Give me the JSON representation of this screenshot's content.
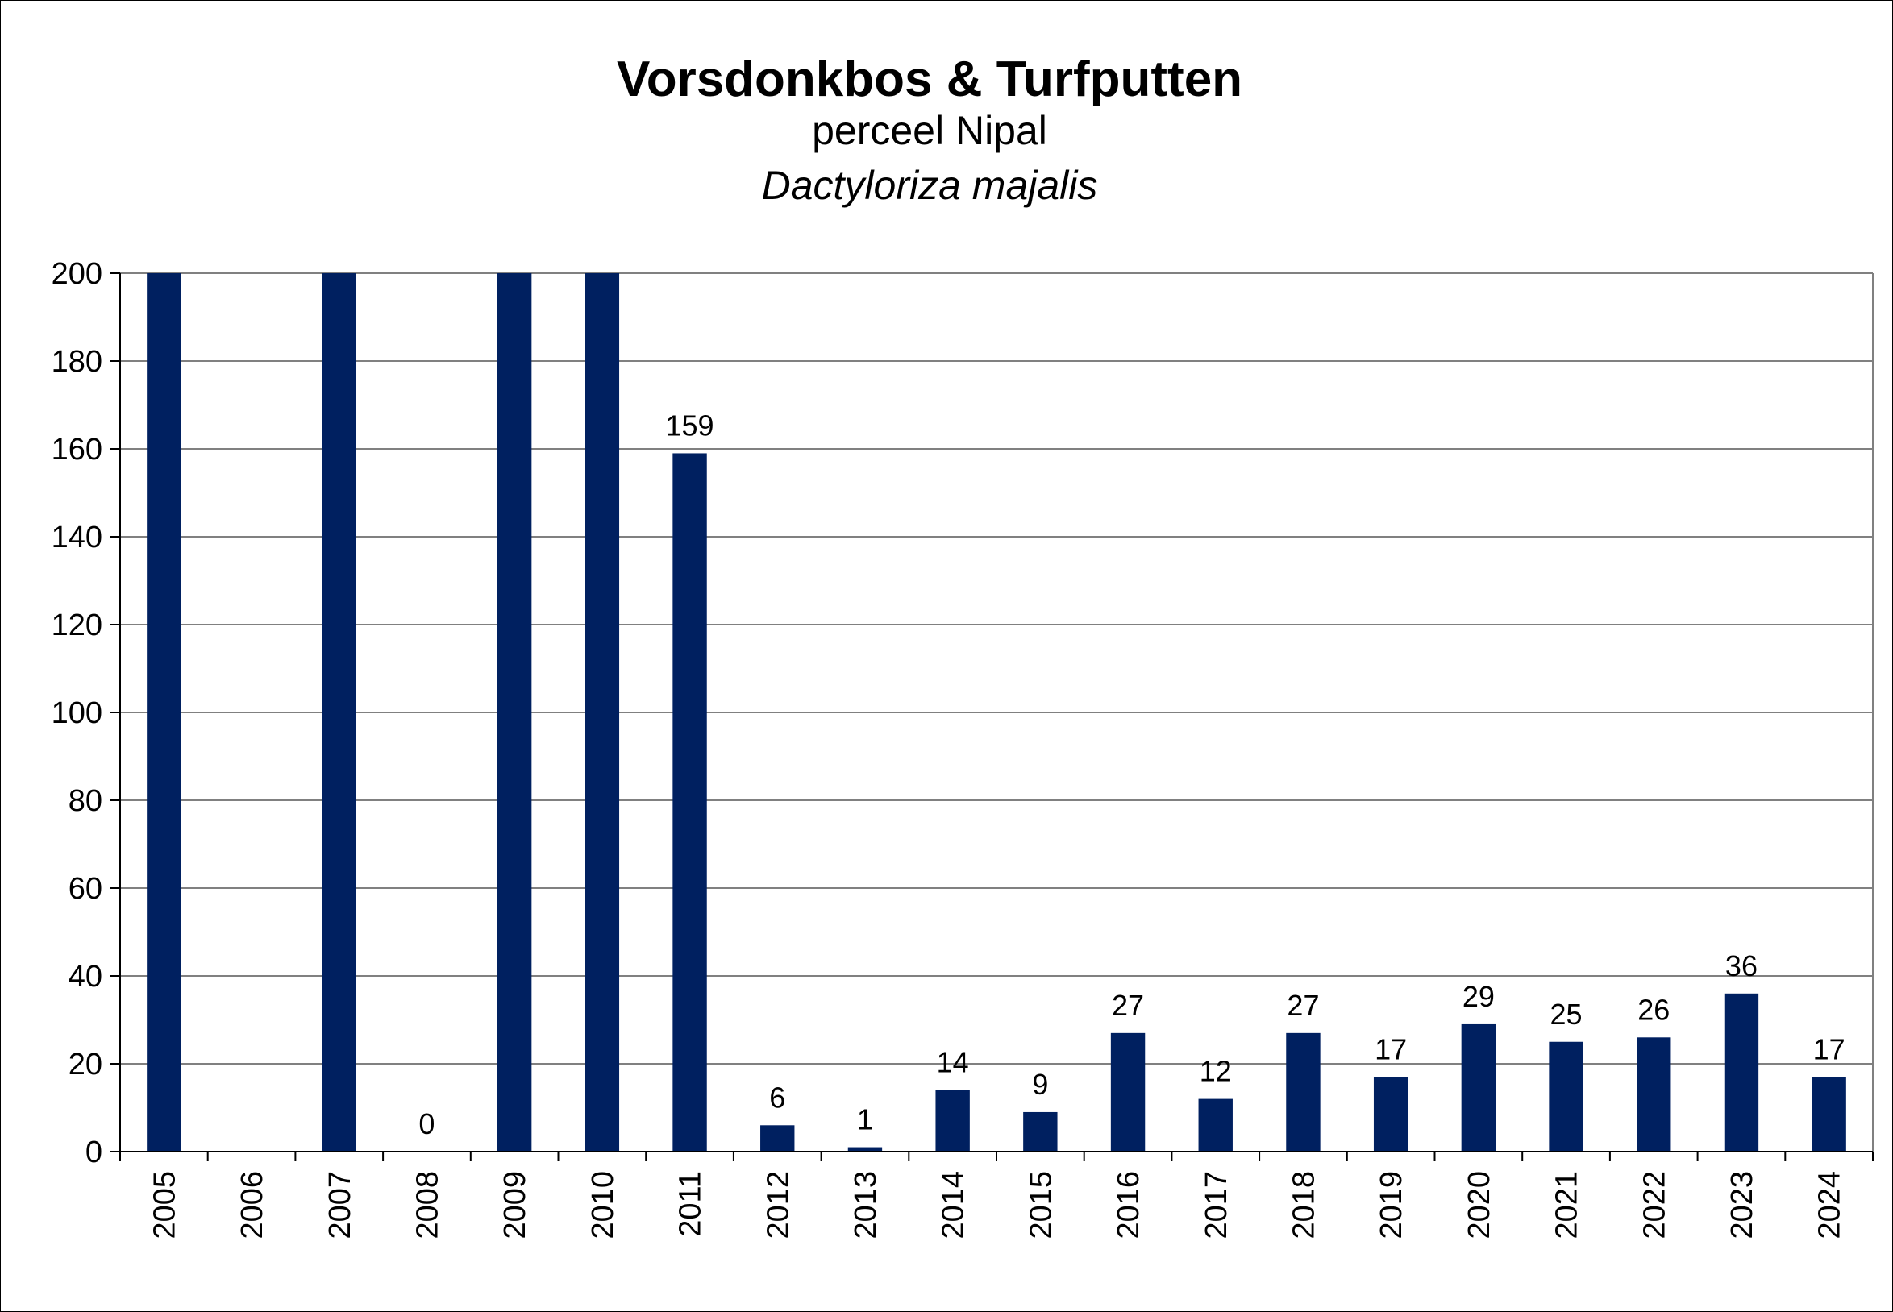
{
  "chart_data": {
    "type": "bar",
    "title": "Vorsdonkbos & Turfputten",
    "subtitle": "perceel Nipal",
    "subtitle2": "Dactyloriza majalis",
    "xlabel": "",
    "ylabel": "",
    "ylim": [
      0,
      200
    ],
    "yticks": [
      0,
      20,
      40,
      60,
      80,
      100,
      120,
      140,
      160,
      180,
      200
    ],
    "grid": true,
    "legend": "none",
    "categories": [
      "2005",
      "2006",
      "2007",
      "2008",
      "2009",
      "2010",
      "2011",
      "2012",
      "2013",
      "2014",
      "2015",
      "2016",
      "2017",
      "2018",
      "2019",
      "2020",
      "2021",
      "2022",
      "2023",
      "2024"
    ],
    "values": [
      200,
      null,
      200,
      0,
      200,
      200,
      159,
      6,
      1,
      14,
      9,
      27,
      12,
      27,
      17,
      29,
      25,
      26,
      36,
      17
    ],
    "data_labels": [
      "",
      "",
      "",
      "0",
      "",
      "",
      "159",
      "6",
      "1",
      "14",
      "9",
      "27",
      "12",
      "27",
      "17",
      "29",
      "25",
      "26",
      "36",
      "17"
    ],
    "bar_color": "#002060",
    "grid_color": "#808080"
  }
}
